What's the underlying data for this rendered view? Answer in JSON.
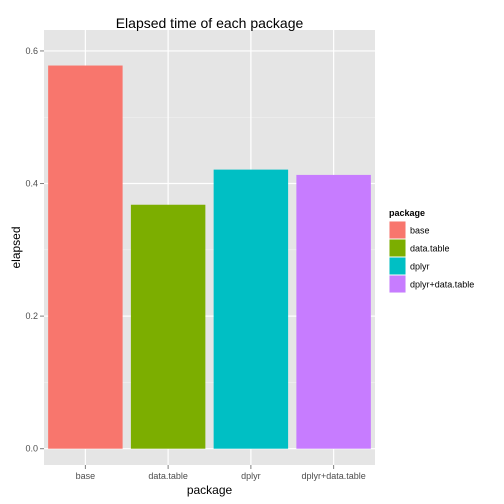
{
  "chart_data": {
    "type": "bar",
    "title": "Elapsed time of each package",
    "xlabel": "package",
    "ylabel": "elapsed",
    "categories": [
      "base",
      "data.table",
      "dplyr",
      "dplyr+data.table"
    ],
    "values": [
      0.578,
      0.368,
      0.421,
      0.413
    ],
    "colors": [
      "#F8766D",
      "#7CAE00",
      "#00BFC4",
      "#C77CFF"
    ],
    "ylim": [
      -0.0246,
      0.6316
    ],
    "yticks": [
      0.0,
      0.2,
      0.4,
      0.6
    ],
    "ytick_labels": [
      "0.0",
      "0.2",
      "0.4",
      "0.6"
    ],
    "grid": true,
    "panel_background": "#E5E5E5",
    "legend": {
      "title": "package",
      "position": "right",
      "entries": [
        "base",
        "data.table",
        "dplyr",
        "dplyr+data.table"
      ]
    }
  }
}
